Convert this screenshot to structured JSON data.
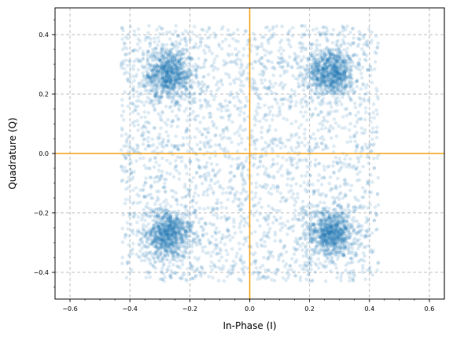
{
  "chart_data": {
    "type": "scatter",
    "title": "",
    "xlabel": "In-Phase (I)",
    "ylabel": "Quadrature (Q)",
    "xlim": [
      -0.65,
      0.65
    ],
    "ylim": [
      -0.49,
      0.49
    ],
    "xticks": [
      -0.6,
      -0.4,
      -0.2,
      0.0,
      0.2,
      0.4,
      0.6
    ],
    "xtick_labels": [
      "−0.6",
      "−0.4",
      "−0.2",
      "0.0",
      "0.2",
      "0.4",
      "0.6"
    ],
    "yticks": [
      -0.4,
      -0.2,
      0.0,
      0.2,
      0.4
    ],
    "ytick_labels": [
      "−0.4",
      "−0.2",
      "0.0",
      "0.2",
      "0.4"
    ],
    "grid": true,
    "grid_style": "dashed",
    "reference_lines": {
      "x": 0,
      "y": 0,
      "color": "#f5a623"
    },
    "point_color": "#1f77b4",
    "point_opacity": 0.15,
    "point_count_approx": 6000,
    "series": [
      {
        "cluster_centers": [
          [
            -0.27,
            0.27
          ],
          [
            0.27,
            0.27
          ],
          [
            -0.27,
            -0.27
          ],
          [
            0.27,
            -0.27
          ]
        ],
        "cluster_spread": 0.04,
        "background_extent": [
          [
            -0.43,
            0.43
          ],
          [
            -0.43,
            0.43
          ]
        ],
        "background_fraction": 0.45
      }
    ]
  }
}
